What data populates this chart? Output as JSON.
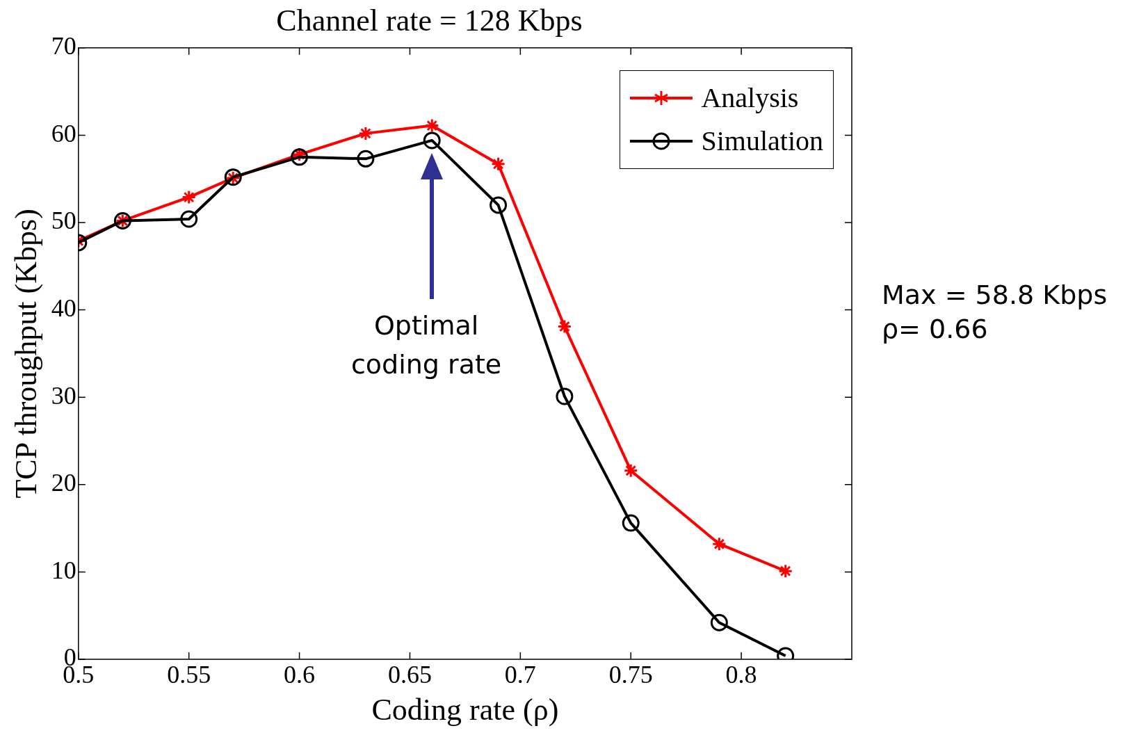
{
  "chart_data": {
    "type": "line",
    "title": "Channel rate = 128 Kbps",
    "xlabel": "Coding rate (ρ)",
    "ylabel": "TCP throughput (Kbps)",
    "x": [
      0.5,
      0.52,
      0.55,
      0.57,
      0.6,
      0.63,
      0.66,
      0.69,
      0.72,
      0.75,
      0.79,
      0.82
    ],
    "series": [
      {
        "name": "Analysis",
        "color": "#ff0000",
        "marker": "cross",
        "values": [
          47.9,
          50.2,
          52.9,
          55.1,
          57.8,
          60.2,
          61.1,
          56.7,
          38.1,
          21.6,
          13.2,
          10.1
        ]
      },
      {
        "name": "Simulation",
        "color": "#000000",
        "marker": "circle",
        "values": [
          47.7,
          50.2,
          50.4,
          55.2,
          57.5,
          57.3,
          59.4,
          52.0,
          30.1,
          15.6,
          4.2,
          0.4
        ]
      }
    ],
    "xlim": [
      0.5,
      0.85
    ],
    "xticks": [
      0.5,
      0.55,
      0.6,
      0.65,
      0.7,
      0.75,
      0.8
    ],
    "ylim": [
      0,
      70
    ],
    "yticks": [
      0,
      10,
      20,
      30,
      40,
      50,
      60,
      70
    ],
    "grid": false,
    "legend": "top right",
    "line_style": "solid",
    "annotations": [
      "Optimal\ncoding rate",
      "Max = 58.8 Kbps\nρ= 0.66"
    ]
  }
}
